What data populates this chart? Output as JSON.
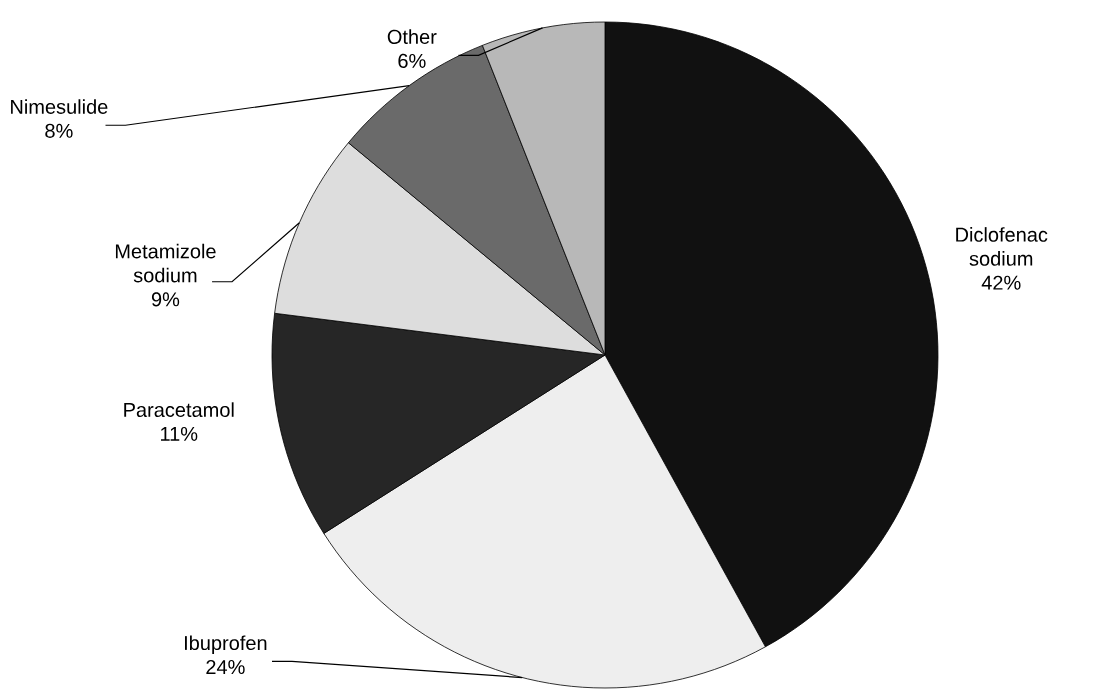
{
  "chart_data": {
    "type": "pie",
    "categories": [
      "Diclofenac sodium",
      "Ibuprofen",
      "Paracetamol",
      "Metamizole sodium",
      "Nimesulide",
      "Other"
    ],
    "values": [
      42,
      24,
      11,
      9,
      8,
      6
    ],
    "value_labels": [
      "42%",
      "24%",
      "11%",
      "9%",
      "8%",
      "6%"
    ],
    "colors": [
      "#111111",
      "#eeeeee",
      "#262626",
      "#dddddd",
      "#6a6a6a",
      "#b8b8b8"
    ]
  }
}
